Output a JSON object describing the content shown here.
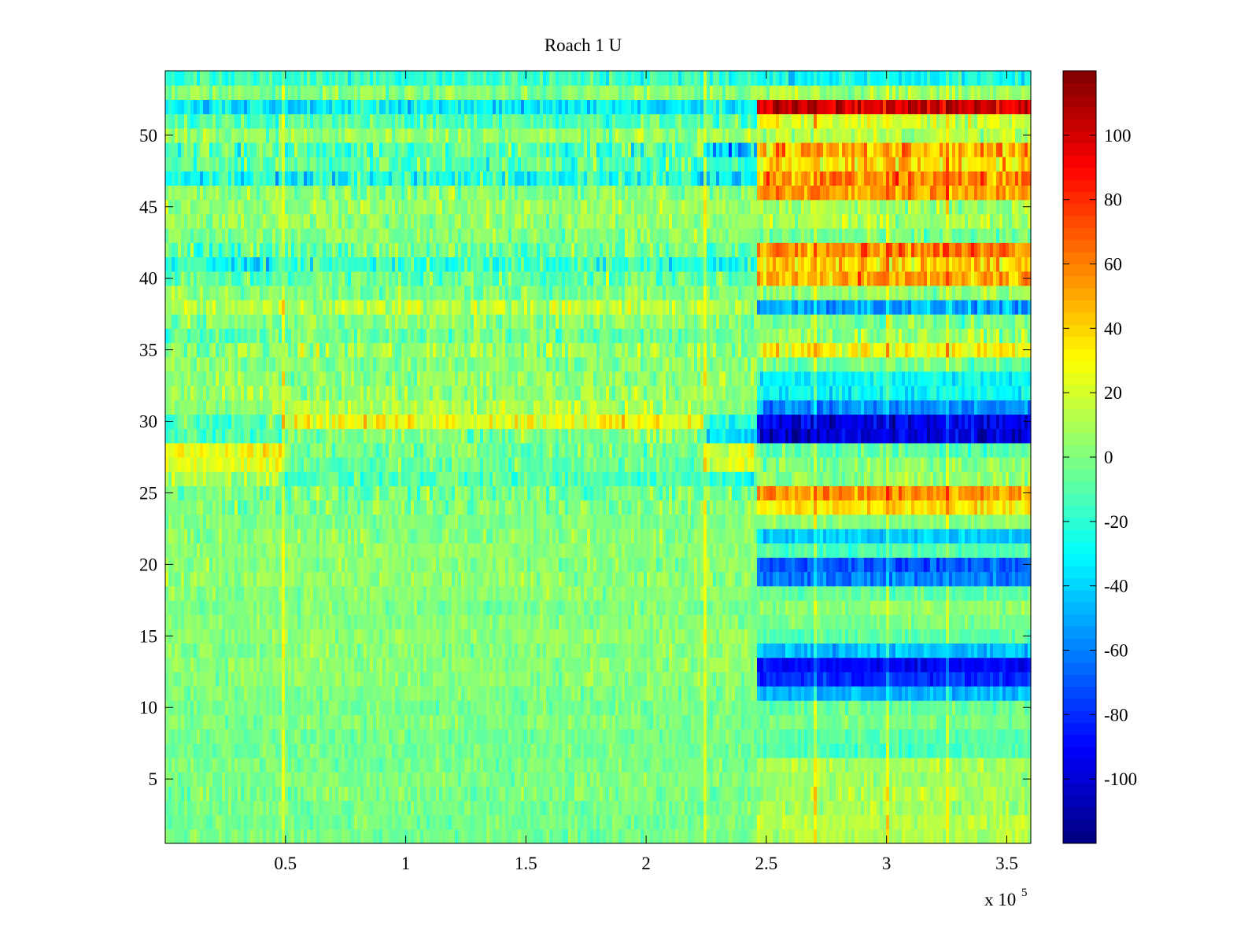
{
  "chart_data": {
    "type": "heatmap",
    "title": "Roach 1 U",
    "xlabel": "",
    "ylabel": "",
    "x_multiplier_label": "x 10",
    "x_multiplier_exponent": "5",
    "xlim": [
      0,
      3.6
    ],
    "ylim": [
      0.5,
      54.5
    ],
    "x_ticks": [
      0.5,
      1,
      1.5,
      2,
      2.5,
      3,
      3.5
    ],
    "x_tick_labels": [
      "0.5",
      "1",
      "1.5",
      "2",
      "2.5",
      "3",
      "3.5"
    ],
    "y_ticks": [
      5,
      10,
      15,
      20,
      25,
      30,
      35,
      40,
      45,
      50
    ],
    "y_tick_labels": [
      "5",
      "10",
      "15",
      "20",
      "25",
      "30",
      "35",
      "40",
      "45",
      "50"
    ],
    "colormap": "jet",
    "clim": [
      -120,
      120
    ],
    "colorbar_ticks": [
      100,
      80,
      60,
      40,
      20,
      0,
      -20,
      -40,
      -60,
      -80,
      -100
    ],
    "colorbar_tick_labels": [
      "100",
      "80",
      "60",
      "40",
      "20",
      "0",
      "-20",
      "-40",
      "-60",
      "-80",
      "-100"
    ],
    "channels": 54,
    "segment_edges": [
      0,
      0.48,
      2.24,
      2.46,
      3.6
    ],
    "row_levels": [
      [
        -2,
        -2,
        -2,
        10
      ],
      [
        -3,
        -3,
        -3,
        14
      ],
      [
        -2,
        -2,
        -2,
        8
      ],
      [
        -1,
        -1,
        -1,
        12
      ],
      [
        0,
        0,
        0,
        6
      ],
      [
        -2,
        -2,
        -2,
        10
      ],
      [
        -3,
        -3,
        -3,
        -12
      ],
      [
        -3,
        -3,
        -3,
        -8
      ],
      [
        0,
        0,
        0,
        -2
      ],
      [
        -2,
        -2,
        -2,
        -6
      ],
      [
        0,
        0,
        0,
        -48
      ],
      [
        2,
        2,
        2,
        -80
      ],
      [
        3,
        3,
        3,
        -90
      ],
      [
        2,
        2,
        2,
        -45
      ],
      [
        4,
        4,
        4,
        -8
      ],
      [
        2,
        2,
        2,
        -2
      ],
      [
        0,
        0,
        0,
        4
      ],
      [
        2,
        2,
        2,
        -8
      ],
      [
        4,
        4,
        4,
        -60
      ],
      [
        2,
        2,
        2,
        -70
      ],
      [
        4,
        4,
        4,
        -12
      ],
      [
        2,
        2,
        2,
        -42
      ],
      [
        0,
        0,
        0,
        2
      ],
      [
        0,
        0,
        0,
        35
      ],
      [
        -3,
        -3,
        -3,
        55
      ],
      [
        10,
        -12,
        -20,
        4
      ],
      [
        25,
        -6,
        20,
        2
      ],
      [
        30,
        -3,
        20,
        -8
      ],
      [
        -12,
        0,
        -38,
        -100
      ],
      [
        -6,
        28,
        -24,
        -95
      ],
      [
        2,
        10,
        2,
        -58
      ],
      [
        6,
        6,
        6,
        -30
      ],
      [
        4,
        4,
        4,
        -30
      ],
      [
        2,
        2,
        2,
        -4
      ],
      [
        4,
        6,
        4,
        30
      ],
      [
        -8,
        -4,
        -8,
        6
      ],
      [
        0,
        2,
        2,
        -2
      ],
      [
        12,
        14,
        12,
        -50
      ],
      [
        0,
        0,
        0,
        6
      ],
      [
        -10,
        -6,
        -10,
        50
      ],
      [
        -24,
        -16,
        -24,
        40
      ],
      [
        -8,
        -4,
        -8,
        62
      ],
      [
        2,
        2,
        2,
        -4
      ],
      [
        4,
        4,
        4,
        10
      ],
      [
        6,
        6,
        6,
        8
      ],
      [
        2,
        2,
        2,
        54
      ],
      [
        -24,
        -24,
        -30,
        58
      ],
      [
        -8,
        -8,
        -20,
        38
      ],
      [
        -10,
        -10,
        -44,
        48
      ],
      [
        4,
        4,
        6,
        12
      ],
      [
        -10,
        -10,
        -10,
        20
      ],
      [
        -32,
        -32,
        -32,
        100
      ],
      [
        2,
        2,
        2,
        8
      ],
      [
        -16,
        -16,
        -20,
        -28
      ]
    ],
    "row_noise": [
      8,
      8,
      8,
      10,
      8,
      8,
      8,
      8,
      8,
      8,
      8,
      8,
      8,
      10,
      8,
      8,
      8,
      8,
      10,
      10,
      8,
      10,
      8,
      12,
      14,
      12,
      12,
      12,
      14,
      14,
      12,
      12,
      12,
      12,
      16,
      14,
      12,
      14,
      12,
      16,
      18,
      16,
      12,
      12,
      12,
      14,
      20,
      18,
      20,
      12,
      14,
      16,
      12,
      14
    ],
    "spike_columns_x": [
      0.49,
      2.245,
      2.7,
      3.0,
      3.25
    ]
  }
}
